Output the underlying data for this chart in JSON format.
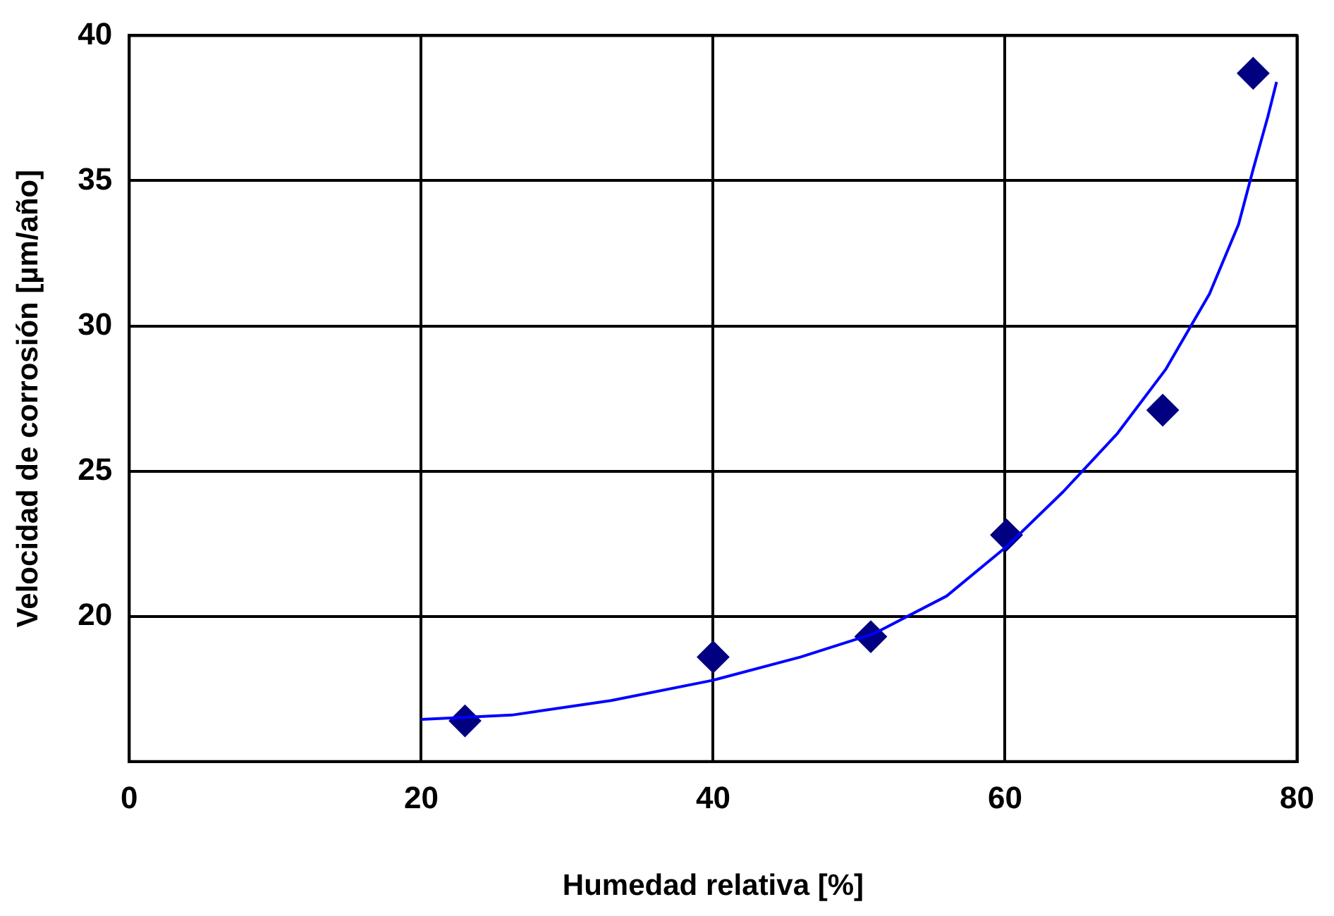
{
  "chart_data": {
    "type": "scatter",
    "xlabel": "Humedad relativa [%]",
    "ylabel": "Velocidad de corrosión [µm/año]",
    "xlim": [
      0,
      80
    ],
    "xticks": [
      0,
      20,
      40,
      60,
      80
    ],
    "ylim": [
      15,
      40
    ],
    "yticks": [
      {
        "value": 15,
        "label": null
      },
      20,
      25,
      30,
      35,
      40
    ],
    "grid": true,
    "legend": false,
    "series": [
      {
        "type": "line",
        "color": "#0000ff",
        "marker": "none",
        "x": [
          20,
          26.2,
          33,
          40,
          46,
          51,
          56,
          60.1,
          64,
          67.7,
          71,
          74,
          76,
          77,
          78,
          78.6
        ],
        "values": [
          16.45,
          16.6,
          17.1,
          17.8,
          18.6,
          19.4,
          20.7,
          22.4,
          24.3,
          26.3,
          28.5,
          31.1,
          33.5,
          35.4,
          37.2,
          38.4
        ]
      },
      {
        "type": "scatter",
        "color": "#000080",
        "marker": "diamond",
        "x": [
          23,
          40,
          50.8,
          60.1,
          70.8,
          77
        ],
        "values": [
          16.4,
          18.6,
          19.3,
          22.8,
          27.1,
          38.7
        ]
      }
    ]
  }
}
